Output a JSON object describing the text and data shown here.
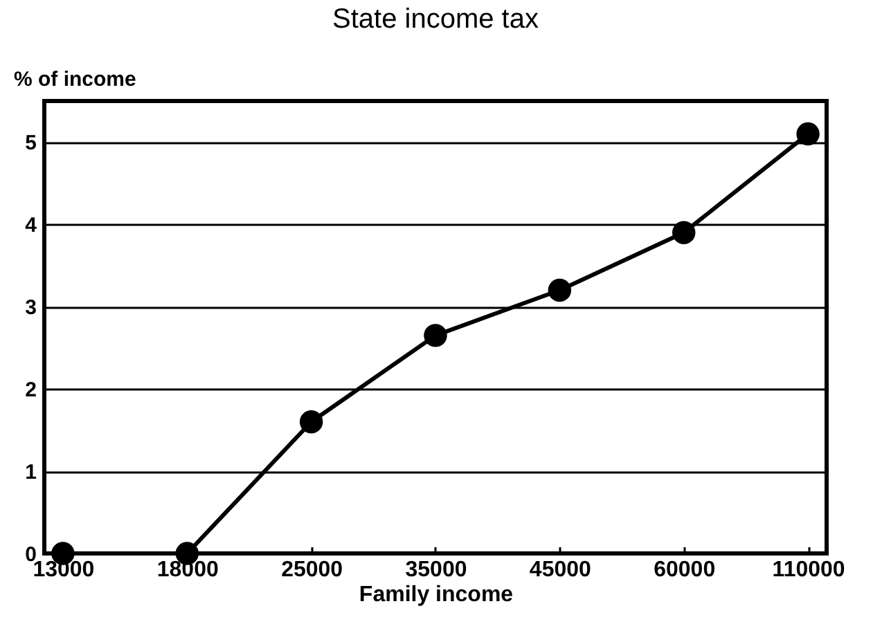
{
  "chart_data": {
    "type": "line",
    "title": "State income tax",
    "xlabel": "Family income",
    "ylabel": "% of income",
    "categories": [
      "13000",
      "18000",
      "25000",
      "35000",
      "45000",
      "60000",
      "110000"
    ],
    "series": [
      {
        "color": "#000000",
        "values": [
          0,
          0,
          1.6,
          2.65,
          3.2,
          3.9,
          5.1
        ]
      }
    ],
    "ylim": [
      0,
      5.5
    ],
    "yticks": [
      0,
      1,
      2,
      3,
      4,
      5
    ],
    "grid": "y",
    "marker": "circle",
    "line_style": "solid"
  }
}
